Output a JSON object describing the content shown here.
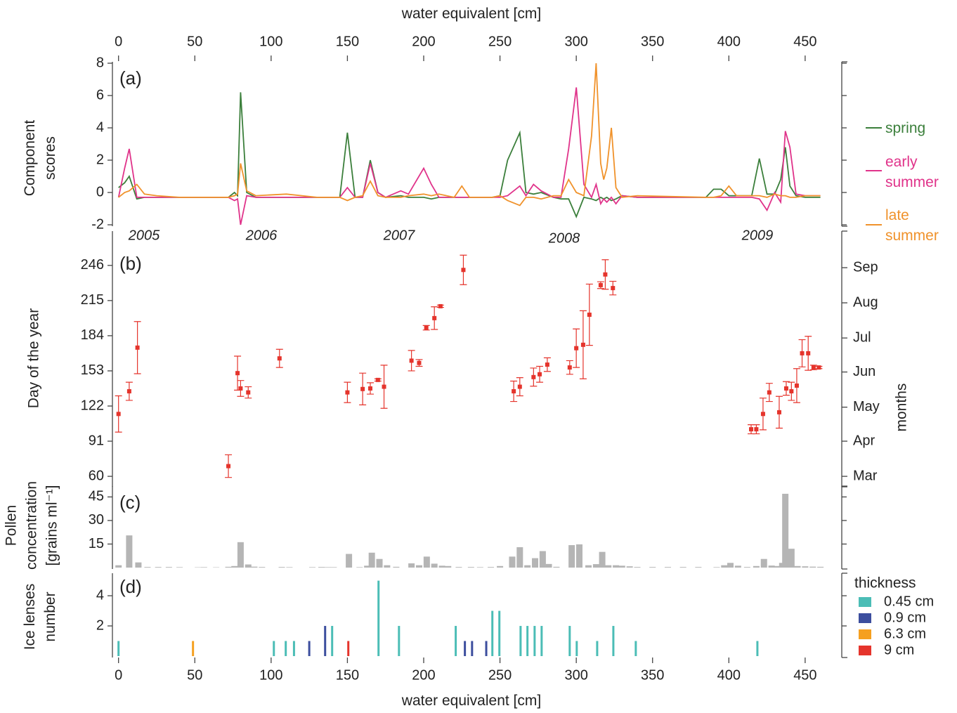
{
  "chart_data": [
    {
      "type": "line",
      "panel_label": "(a)",
      "xlabel": "water equivalent [cm]",
      "ylabel": "Component scores",
      "xlim": [
        -4,
        474
      ],
      "xticks": [
        0,
        50,
        100,
        150,
        200,
        250,
        300,
        350,
        400,
        450
      ],
      "ylim": [
        -2,
        8
      ],
      "yticks": [
        -2,
        0,
        2,
        4,
        6,
        8
      ],
      "annotations": [
        "2005",
        "2006",
        "2007",
        "2008",
        "2009"
      ],
      "x": [
        0,
        4,
        7,
        12,
        17,
        25,
        40,
        60,
        72,
        76,
        78,
        80,
        84,
        90,
        110,
        130,
        145,
        150,
        155,
        160,
        165,
        170,
        175,
        185,
        190,
        200,
        205,
        210,
        220,
        225,
        230,
        245,
        250,
        255,
        263,
        267,
        272,
        277,
        285,
        290,
        295,
        300,
        305,
        310,
        313,
        316,
        318,
        320,
        323,
        326,
        330,
        340,
        385,
        390,
        395,
        400,
        405,
        415,
        420,
        425,
        430,
        434,
        437,
        440,
        444,
        450,
        460
      ],
      "series": [
        {
          "name": "spring",
          "color": "#3b7f3b",
          "values": [
            0.3,
            0.6,
            1.0,
            -0.4,
            -0.3,
            -0.3,
            -0.3,
            -0.3,
            -0.3,
            0,
            -0.2,
            6.2,
            0,
            -0.3,
            -0.3,
            -0.3,
            -0.3,
            3.7,
            -0.3,
            -0.3,
            2.0,
            0,
            -0.3,
            -0.2,
            -0.3,
            -0.3,
            -0.4,
            -0.3,
            -0.3,
            -0.3,
            -0.3,
            -0.3,
            -0.2,
            2.0,
            3.7,
            0,
            -0.1,
            0,
            -0.3,
            -0.4,
            -0.4,
            -1.5,
            -0.3,
            -0.4,
            -0.5,
            -0.3,
            -0.4,
            -0.3,
            -0.5,
            -0.4,
            -0.2,
            -0.3,
            -0.3,
            0.2,
            0.2,
            -0.2,
            -0.2,
            -0.2,
            2.1,
            -0.1,
            -0.1,
            0.8,
            2.8,
            0.4,
            -0.2,
            -0.3,
            -0.3
          ]
        },
        {
          "name": "early summer",
          "color": "#e0338a",
          "values": [
            -0.3,
            1.5,
            2.7,
            -0.3,
            -0.3,
            -0.3,
            -0.3,
            -0.3,
            -0.3,
            -0.5,
            -0.4,
            -2.0,
            -0.2,
            -0.3,
            -0.3,
            -0.3,
            -0.3,
            0.3,
            -0.3,
            -0.3,
            1.8,
            0,
            -0.3,
            0.1,
            -0.1,
            1.5,
            0.5,
            -0.3,
            -0.3,
            -0.3,
            -0.3,
            -0.3,
            -0.3,
            -0.2,
            0.4,
            -0.2,
            0.5,
            0.1,
            -0.3,
            -0.3,
            2.7,
            6.5,
            0.5,
            -0.3,
            0.5,
            -0.7,
            -0.4,
            -0.6,
            -0.3,
            -0.7,
            -0.2,
            -0.3,
            -0.3,
            -0.3,
            -0.3,
            -0.3,
            -0.3,
            -0.3,
            -0.4,
            -1.1,
            0,
            -0.6,
            3.8,
            2.8,
            -0.1,
            -0.2,
            -0.2
          ]
        },
        {
          "name": "late summer",
          "color": "#f0922b",
          "values": [
            -0.3,
            0,
            0.1,
            0.5,
            -0.1,
            -0.2,
            -0.3,
            -0.3,
            -0.3,
            -0.2,
            -0.1,
            1.8,
            0.1,
            -0.2,
            -0.1,
            -0.3,
            -0.3,
            -0.5,
            -0.3,
            -0.2,
            0.7,
            -0.2,
            -0.3,
            -0.3,
            -0.2,
            -0.1,
            -0.2,
            -0.1,
            -0.3,
            0.4,
            -0.3,
            -0.3,
            -0.2,
            -0.5,
            -0.8,
            -0.3,
            -0.3,
            -0.4,
            -0.2,
            -0.2,
            0.8,
            0,
            -0.2,
            3.5,
            8.0,
            1.8,
            0.8,
            1.5,
            4.0,
            0.3,
            -0.3,
            -0.2,
            -0.3,
            -0.3,
            -0.2,
            0.4,
            -0.2,
            -0.2,
            -0.2,
            -0.3,
            -0.1,
            -0.2,
            -0.2,
            -0.3,
            -0.3,
            -0.2,
            -0.2
          ]
        }
      ]
    },
    {
      "type": "errorbar",
      "panel_label": "(b)",
      "ylabel": "Day of the year",
      "y2label": "months",
      "xlim": [
        -4,
        474
      ],
      "ylim": [
        52,
        275
      ],
      "yticks": [
        60,
        91,
        122,
        153,
        184,
        215,
        246
      ],
      "y2lim": [
        52,
        275
      ],
      "y2ticks": [
        {
          "value": 60,
          "label": "Mar"
        },
        {
          "value": 91,
          "label": "Apr"
        },
        {
          "value": 121,
          "label": "May"
        },
        {
          "value": 152,
          "label": "Jun"
        },
        {
          "value": 182,
          "label": "Jul"
        },
        {
          "value": 213,
          "label": "Aug"
        },
        {
          "value": 244,
          "label": "Sep"
        }
      ],
      "color": "#e5342c",
      "x": [
        0,
        7,
        12.4,
        72,
        78,
        80,
        85,
        105.5,
        150,
        160,
        165,
        170,
        174,
        192,
        197,
        201.7,
        207,
        211,
        226,
        259,
        263,
        272,
        276,
        281,
        295.7,
        300,
        304.5,
        308.6,
        316,
        319,
        324,
        414.6,
        418,
        422.4,
        426.5,
        433,
        437.6,
        441,
        444.5,
        448,
        452,
        455.5,
        459
      ],
      "values": [
        115,
        135,
        173.5,
        69,
        151,
        137.5,
        134,
        164,
        134,
        137,
        137.5,
        145,
        139,
        162,
        160,
        191,
        199.5,
        210,
        242,
        135,
        139,
        147.5,
        150,
        158.5,
        156,
        173,
        176,
        202.5,
        228.6,
        238,
        226,
        101.5,
        101.5,
        115,
        134,
        116.5,
        137.5,
        135,
        140,
        168.5,
        168.5,
        156,
        156
      ],
      "errors": [
        16,
        8,
        23,
        10,
        15,
        7,
        5,
        8,
        9,
        14,
        5,
        1,
        19,
        9,
        3,
        2,
        10,
        1,
        13,
        9,
        8,
        8,
        7,
        6,
        6,
        17,
        30,
        27,
        3,
        13,
        6,
        4,
        4,
        14,
        8,
        14,
        6,
        8,
        15,
        12,
        15,
        2,
        1
      ]
    },
    {
      "type": "bar",
      "panel_label": "(c)",
      "ylabel": "Pollen concentration [grains ml⁻¹]",
      "xlim": [
        -4,
        474
      ],
      "ylim": [
        0,
        51
      ],
      "yticks": [
        15,
        30,
        45
      ],
      "color": "#b5b5b5",
      "x": [
        0,
        7,
        13,
        19,
        26,
        33,
        40,
        52,
        56,
        64,
        72,
        76,
        80,
        85,
        89,
        94,
        107,
        112,
        127,
        133,
        137,
        141,
        151,
        158,
        163,
        166,
        171,
        176,
        182,
        192,
        197,
        202,
        207,
        212,
        216,
        223,
        231,
        237,
        244,
        250,
        258,
        263,
        268,
        273,
        278,
        282,
        287,
        297,
        302,
        308,
        313,
        317,
        321,
        326,
        330,
        335,
        340,
        350,
        360,
        370,
        380,
        392,
        397,
        401,
        406,
        412,
        418,
        423,
        428,
        432,
        435,
        437,
        441,
        445,
        450,
        455,
        460
      ],
      "values": [
        1.5,
        20.5,
        3.3,
        0.4,
        0.4,
        0.4,
        0.3,
        0.2,
        0.3,
        0.2,
        0.5,
        1.0,
        16.2,
        2.0,
        0.6,
        0.4,
        0.4,
        0.3,
        0.3,
        0.4,
        0.3,
        0.3,
        8.7,
        0.3,
        1.2,
        9.5,
        5.5,
        1.5,
        0.5,
        2.7,
        1.5,
        7.0,
        2.5,
        1.2,
        1.0,
        0.4,
        0.4,
        0.3,
        0.4,
        1.0,
        7.0,
        13.0,
        1.5,
        6.0,
        10.5,
        2.3,
        0.5,
        14.3,
        14.8,
        1.5,
        2.2,
        10.0,
        1.5,
        1.5,
        1.2,
        0.8,
        0.4,
        0.4,
        0.4,
        0.4,
        0.4,
        0.3,
        1.5,
        3.0,
        1.2,
        0.4,
        1.0,
        5.5,
        1.3,
        1.0,
        3.0,
        47,
        12.0,
        1.0,
        0.8,
        0.6,
        0.5
      ]
    },
    {
      "type": "bar",
      "panel_label": "(d)",
      "ylabel": "Ice lenses number",
      "xlabel": "water equivalent [cm]",
      "xlim": [
        -4,
        474
      ],
      "xticks": [
        0,
        50,
        100,
        150,
        200,
        250,
        300,
        350,
        400,
        450
      ],
      "ylim": [
        0,
        5.4
      ],
      "yticks": [
        2,
        4
      ],
      "legend_title": "thickness",
      "series": [
        {
          "name": "0.45 cm",
          "color": "#4bbdb6",
          "x": [
            0,
            101.8,
            109.6,
            115,
            140,
            170.4,
            183.8,
            221,
            245,
            249.6,
            263.5,
            268,
            272.7,
            277.3,
            295.7,
            300.3,
            313.7,
            324.3,
            339,
            418.7
          ],
          "values": [
            1,
            1,
            1,
            1,
            2,
            5,
            2,
            2,
            3,
            3,
            2,
            2,
            2,
            2,
            2,
            1,
            1,
            2,
            1,
            1
          ]
        },
        {
          "name": "0.9 cm",
          "color": "#3c4e9e",
          "x": [
            125,
            135.4,
            227,
            231.7,
            241
          ],
          "values": [
            1,
            2,
            1,
            1,
            1
          ]
        },
        {
          "name": "6.3 cm",
          "color": "#f5a020",
          "x": [
            48.8
          ],
          "values": [
            1
          ]
        },
        {
          "name": "9 cm",
          "color": "#e5342c",
          "x": [
            150.6
          ],
          "values": [
            1
          ]
        }
      ]
    }
  ]
}
